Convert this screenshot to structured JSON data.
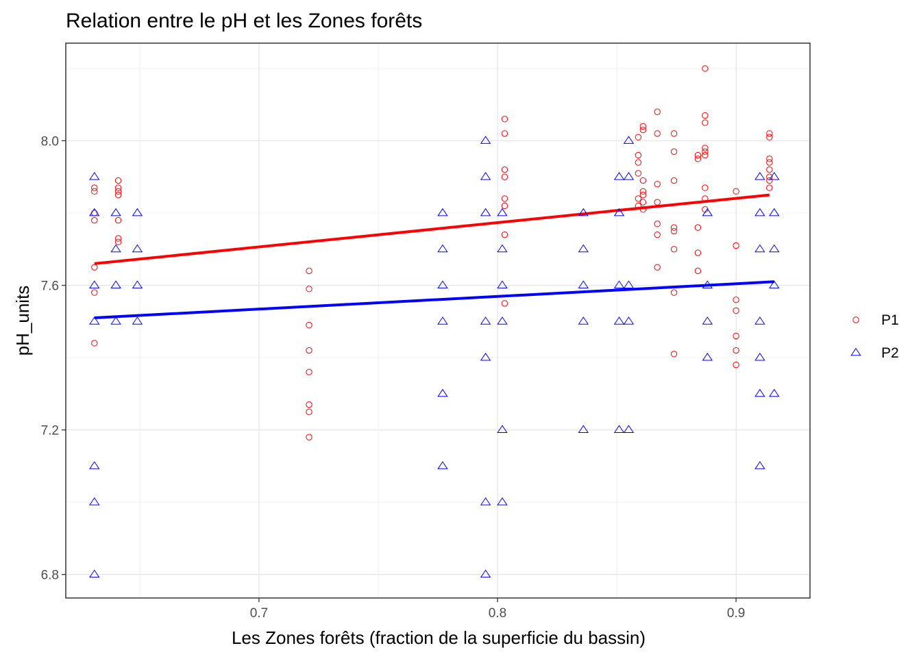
{
  "chart_data": {
    "type": "scatter",
    "title": "Relation entre le pH et les Zones forêts",
    "xlabel": "Les Zones forêts (fraction de la superficie du bassin)",
    "ylabel": "pH_units",
    "xlim": [
      0.619,
      0.931
    ],
    "ylim": [
      6.735,
      8.27
    ],
    "x_ticks": [
      0.7,
      0.8,
      0.9
    ],
    "y_ticks": [
      6.8,
      7.2,
      7.6,
      8.0
    ],
    "x_tick_labels": [
      "0.7",
      "0.8",
      "0.9"
    ],
    "y_tick_labels": [
      "6.8",
      "7.2",
      "7.6",
      "8.0"
    ],
    "grid": true,
    "legend": {
      "position": "right"
    },
    "series": [
      {
        "name": "P1",
        "marker": "circle",
        "color": "#ff0000",
        "points": [
          [
            0.631,
            7.87
          ],
          [
            0.631,
            7.86
          ],
          [
            0.631,
            7.8
          ],
          [
            0.631,
            7.78
          ],
          [
            0.631,
            7.65
          ],
          [
            0.631,
            7.58
          ],
          [
            0.631,
            7.44
          ],
          [
            0.641,
            7.89
          ],
          [
            0.641,
            7.87
          ],
          [
            0.641,
            7.86
          ],
          [
            0.641,
            7.85
          ],
          [
            0.641,
            7.78
          ],
          [
            0.641,
            7.73
          ],
          [
            0.641,
            7.72
          ],
          [
            0.721,
            7.64
          ],
          [
            0.721,
            7.59
          ],
          [
            0.721,
            7.49
          ],
          [
            0.721,
            7.42
          ],
          [
            0.721,
            7.36
          ],
          [
            0.721,
            7.27
          ],
          [
            0.721,
            7.25
          ],
          [
            0.721,
            7.18
          ],
          [
            0.803,
            8.06
          ],
          [
            0.803,
            8.02
          ],
          [
            0.803,
            7.92
          ],
          [
            0.803,
            7.9
          ],
          [
            0.803,
            7.84
          ],
          [
            0.803,
            7.82
          ],
          [
            0.803,
            7.74
          ],
          [
            0.803,
            7.55
          ],
          [
            0.859,
            8.01
          ],
          [
            0.859,
            7.96
          ],
          [
            0.859,
            7.94
          ],
          [
            0.859,
            7.91
          ],
          [
            0.859,
            7.84
          ],
          [
            0.859,
            7.82
          ],
          [
            0.861,
            8.04
          ],
          [
            0.861,
            8.03
          ],
          [
            0.861,
            7.89
          ],
          [
            0.861,
            7.86
          ],
          [
            0.861,
            7.85
          ],
          [
            0.861,
            7.83
          ],
          [
            0.861,
            7.81
          ],
          [
            0.867,
            8.08
          ],
          [
            0.867,
            8.02
          ],
          [
            0.867,
            7.88
          ],
          [
            0.867,
            7.83
          ],
          [
            0.867,
            7.77
          ],
          [
            0.867,
            7.74
          ],
          [
            0.867,
            7.65
          ],
          [
            0.874,
            8.02
          ],
          [
            0.874,
            7.97
          ],
          [
            0.874,
            7.89
          ],
          [
            0.874,
            7.76
          ],
          [
            0.874,
            7.75
          ],
          [
            0.874,
            7.7
          ],
          [
            0.874,
            7.58
          ],
          [
            0.874,
            7.41
          ],
          [
            0.884,
            7.96
          ],
          [
            0.884,
            7.95
          ],
          [
            0.884,
            7.76
          ],
          [
            0.884,
            7.69
          ],
          [
            0.884,
            7.64
          ],
          [
            0.887,
            8.2
          ],
          [
            0.887,
            8.07
          ],
          [
            0.887,
            8.05
          ],
          [
            0.887,
            7.98
          ],
          [
            0.887,
            7.97
          ],
          [
            0.887,
            7.96
          ],
          [
            0.887,
            7.87
          ],
          [
            0.887,
            7.84
          ],
          [
            0.887,
            7.81
          ],
          [
            0.9,
            7.86
          ],
          [
            0.9,
            7.71
          ],
          [
            0.9,
            7.56
          ],
          [
            0.9,
            7.53
          ],
          [
            0.9,
            7.46
          ],
          [
            0.9,
            7.42
          ],
          [
            0.9,
            7.38
          ],
          [
            0.914,
            8.02
          ],
          [
            0.914,
            8.01
          ],
          [
            0.914,
            7.95
          ],
          [
            0.914,
            7.94
          ],
          [
            0.914,
            7.92
          ],
          [
            0.914,
            7.9
          ],
          [
            0.914,
            7.89
          ],
          [
            0.914,
            7.87
          ]
        ],
        "trend": {
          "x": [
            0.631,
            0.914
          ],
          "y": [
            7.66,
            7.85
          ],
          "color": "#ff0000"
        }
      },
      {
        "name": "P2",
        "marker": "triangle",
        "color": "#0000ff",
        "points": [
          [
            0.631,
            7.9
          ],
          [
            0.631,
            7.8
          ],
          [
            0.631,
            7.6
          ],
          [
            0.631,
            7.5
          ],
          [
            0.631,
            7.1
          ],
          [
            0.631,
            7.0
          ],
          [
            0.631,
            6.8
          ],
          [
            0.64,
            7.8
          ],
          [
            0.64,
            7.7
          ],
          [
            0.64,
            7.6
          ],
          [
            0.64,
            7.5
          ],
          [
            0.649,
            7.8
          ],
          [
            0.649,
            7.7
          ],
          [
            0.649,
            7.6
          ],
          [
            0.649,
            7.5
          ],
          [
            0.777,
            7.8
          ],
          [
            0.777,
            7.7
          ],
          [
            0.777,
            7.6
          ],
          [
            0.777,
            7.5
          ],
          [
            0.777,
            7.3
          ],
          [
            0.777,
            7.1
          ],
          [
            0.795,
            8.0
          ],
          [
            0.795,
            7.9
          ],
          [
            0.795,
            7.8
          ],
          [
            0.795,
            7.5
          ],
          [
            0.795,
            7.4
          ],
          [
            0.795,
            7.0
          ],
          [
            0.795,
            6.8
          ],
          [
            0.802,
            7.8
          ],
          [
            0.802,
            7.7
          ],
          [
            0.802,
            7.6
          ],
          [
            0.802,
            7.5
          ],
          [
            0.802,
            7.2
          ],
          [
            0.802,
            7.0
          ],
          [
            0.836,
            7.8
          ],
          [
            0.836,
            7.7
          ],
          [
            0.836,
            7.6
          ],
          [
            0.836,
            7.5
          ],
          [
            0.836,
            7.2
          ],
          [
            0.851,
            7.9
          ],
          [
            0.851,
            7.8
          ],
          [
            0.851,
            7.6
          ],
          [
            0.851,
            7.5
          ],
          [
            0.851,
            7.2
          ],
          [
            0.855,
            8.0
          ],
          [
            0.855,
            7.9
          ],
          [
            0.855,
            7.6
          ],
          [
            0.855,
            7.5
          ],
          [
            0.855,
            7.2
          ],
          [
            0.888,
            7.8
          ],
          [
            0.888,
            7.6
          ],
          [
            0.888,
            7.5
          ],
          [
            0.888,
            7.4
          ],
          [
            0.91,
            7.9
          ],
          [
            0.91,
            7.8
          ],
          [
            0.91,
            7.7
          ],
          [
            0.91,
            7.5
          ],
          [
            0.91,
            7.4
          ],
          [
            0.91,
            7.3
          ],
          [
            0.91,
            7.1
          ],
          [
            0.916,
            7.9
          ],
          [
            0.916,
            7.8
          ],
          [
            0.916,
            7.7
          ],
          [
            0.916,
            7.6
          ],
          [
            0.916,
            7.3
          ]
        ],
        "trend": {
          "x": [
            0.631,
            0.916
          ],
          "y": [
            7.51,
            7.61
          ],
          "color": "#0000ff"
        }
      }
    ]
  }
}
